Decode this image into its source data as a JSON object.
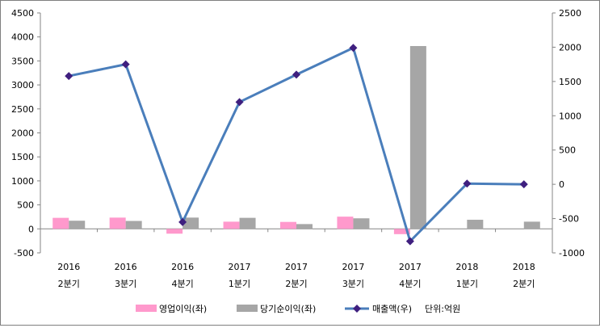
{
  "chart_data": {
    "type": "bar",
    "categories": [
      {
        "year": "2016",
        "quarter": "2분기"
      },
      {
        "year": "2016",
        "quarter": "3분기"
      },
      {
        "year": "2016",
        "quarter": "4분기"
      },
      {
        "year": "2017",
        "quarter": "1분기"
      },
      {
        "year": "2017",
        "quarter": "2분기"
      },
      {
        "year": "2017",
        "quarter": "3분기"
      },
      {
        "year": "2017",
        "quarter": "4분기"
      },
      {
        "year": "2018",
        "quarter": "1분기"
      },
      {
        "year": "2018",
        "quarter": "2분기"
      }
    ],
    "series": [
      {
        "name": "영업이익(좌)",
        "type": "bar",
        "axis": "left",
        "color": "#ff99cc",
        "values": [
          230,
          235,
          -100,
          150,
          145,
          255,
          -110,
          null,
          null
        ]
      },
      {
        "name": "당기순이익(좌)",
        "type": "bar",
        "axis": "left",
        "color": "#a6a6a6",
        "values": [
          170,
          165,
          235,
          230,
          100,
          220,
          3810,
          190,
          150
        ]
      },
      {
        "name": "매출액(우)",
        "type": "line",
        "axis": "right",
        "color": "#4a7ebb",
        "marker_color": "#3f1f7f",
        "values": [
          1580,
          1750,
          -550,
          1200,
          1600,
          1990,
          -830,
          10,
          0
        ]
      }
    ],
    "left_axis": {
      "min": -500,
      "max": 4500,
      "ticks": [
        "-500",
        "0",
        "500",
        "1000",
        "1500",
        "2000",
        "2500",
        "3000",
        "3500",
        "4000",
        "4500"
      ]
    },
    "right_axis": {
      "min": -1000,
      "max": 2500,
      "ticks": [
        "-1000",
        "-500",
        "0",
        "500",
        "1000",
        "1500",
        "2000",
        "2500"
      ]
    },
    "legend_position": "bottom",
    "unit_note": "단위:억원",
    "grid": false
  }
}
